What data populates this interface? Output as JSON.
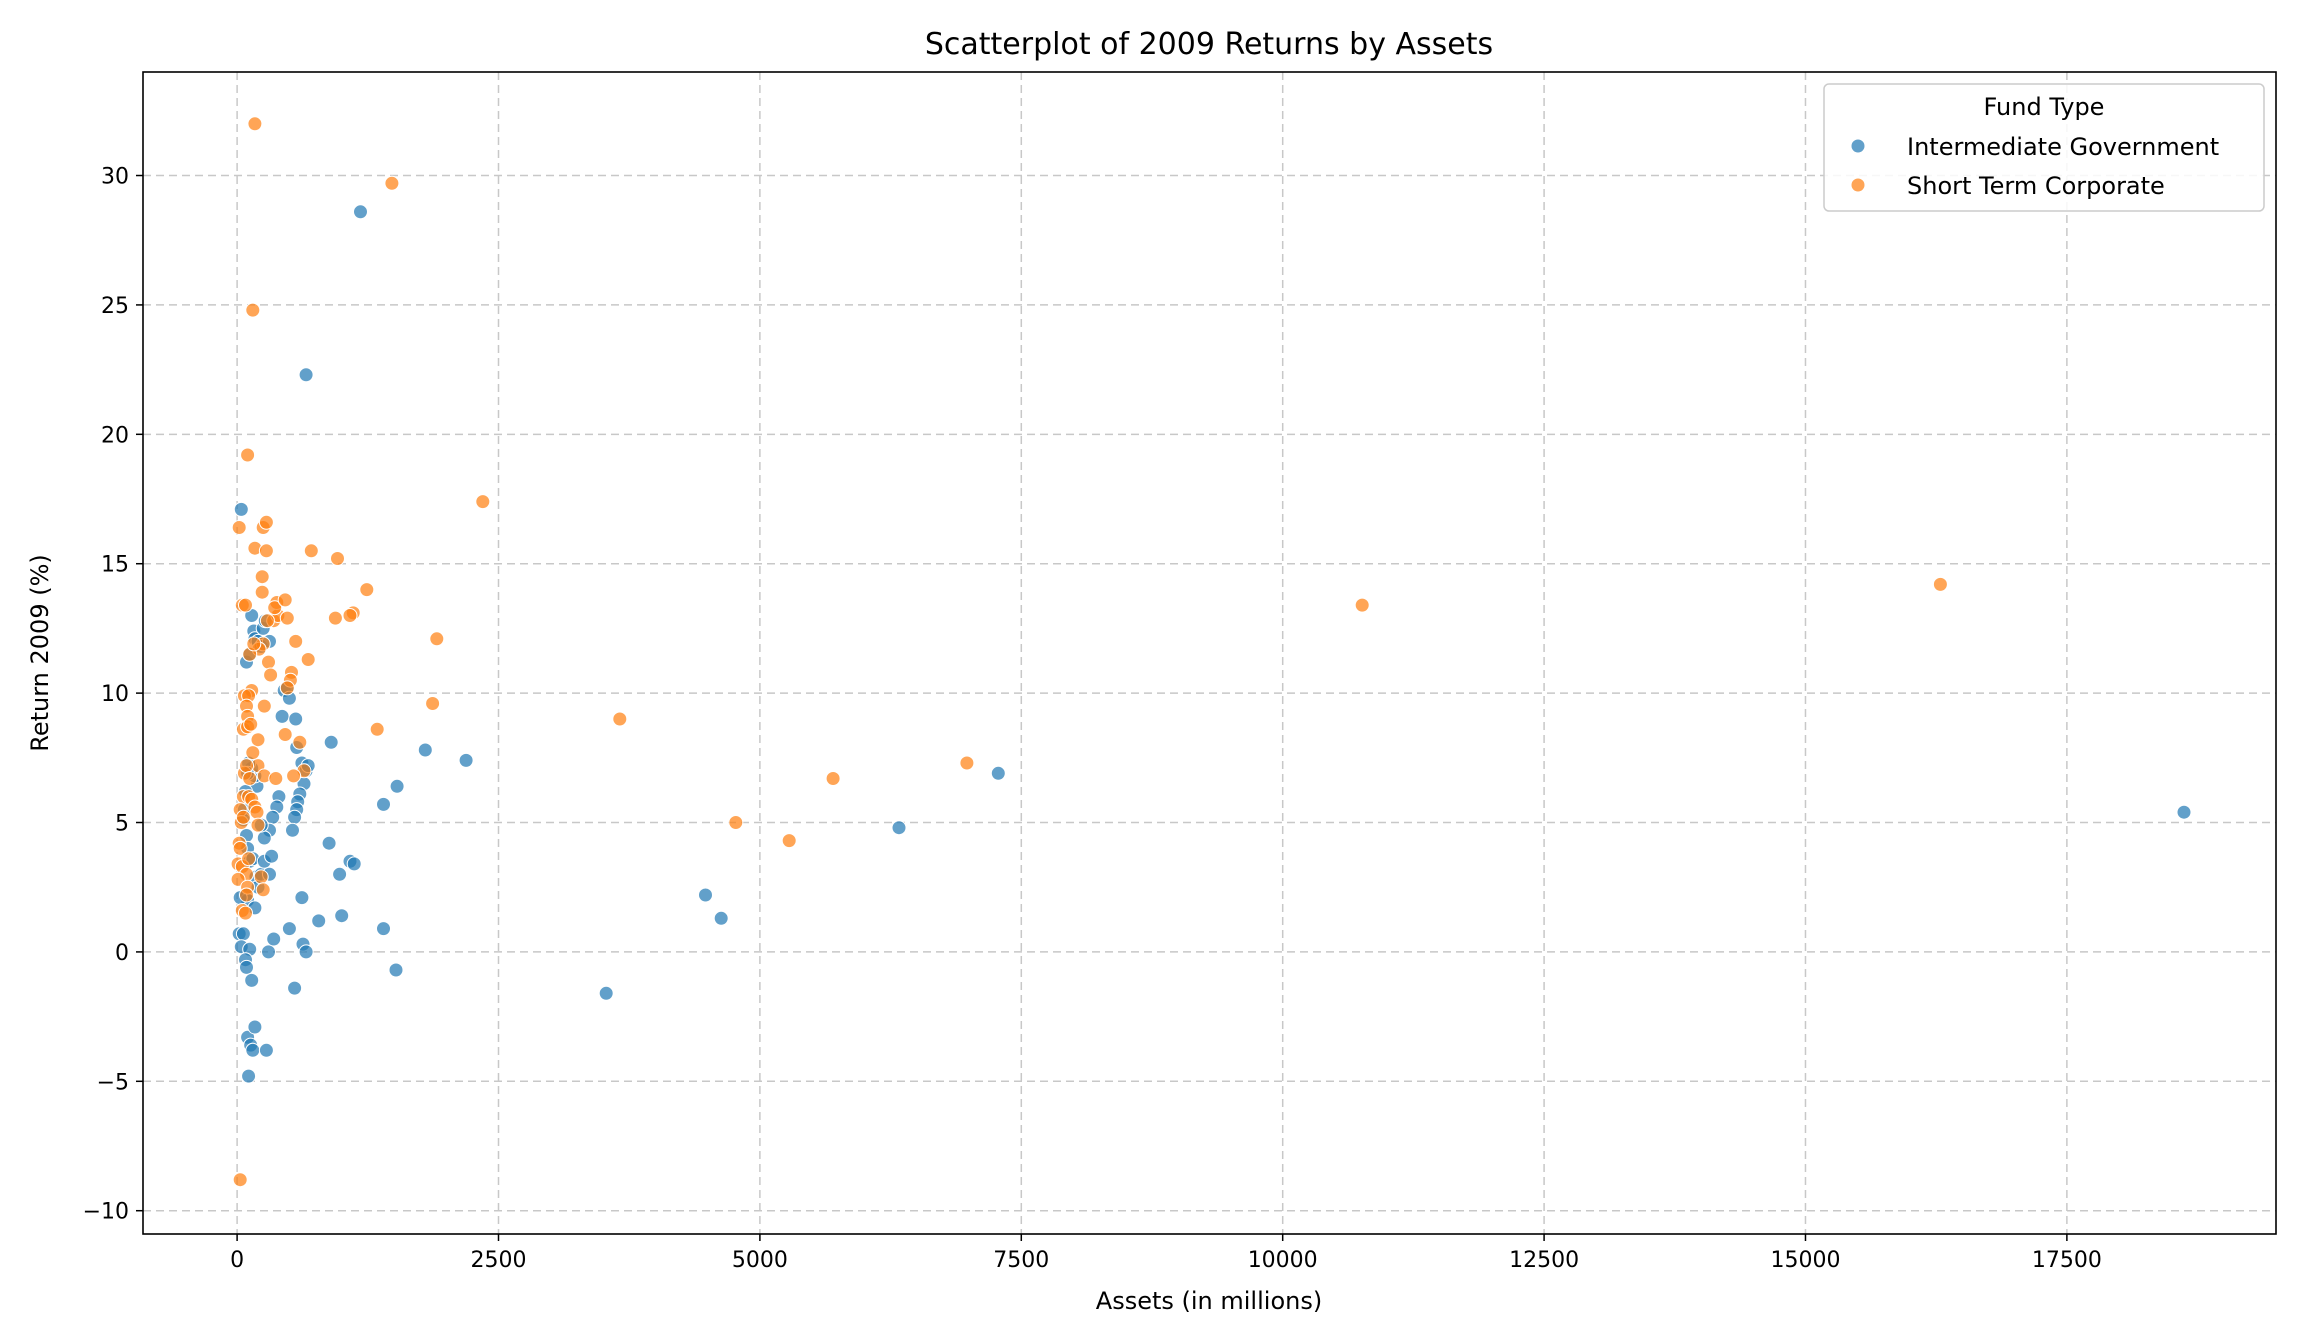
{
  "chart_data": {
    "type": "scatter",
    "title": "Scatterplot of 2009 Returns by Assets",
    "xlabel": "Assets (in millions)",
    "ylabel": "Return 2009 (%)",
    "xlim": [
      -900,
      19500
    ],
    "ylim": [
      -10.9,
      34
    ],
    "xticks": [
      0,
      2500,
      5000,
      7500,
      10000,
      12500,
      15000,
      17500
    ],
    "yticks": [
      -10,
      -5,
      0,
      5,
      10,
      15,
      20,
      25,
      30
    ],
    "grid": true,
    "legend": {
      "title": "Fund Type",
      "placement": "top-right"
    },
    "series": [
      {
        "name": "Intermediate Government",
        "color": "#1f77b4",
        "points": [
          [
            40,
            17.1
          ],
          [
            90,
            11.2
          ],
          [
            120,
            11.5
          ],
          [
            140,
            13.0
          ],
          [
            160,
            12.4
          ],
          [
            170,
            12.1
          ],
          [
            200,
            12.0
          ],
          [
            230,
            11.8
          ],
          [
            250,
            12.5
          ],
          [
            270,
            12.8
          ],
          [
            310,
            12.0
          ],
          [
            430,
            9.1
          ],
          [
            450,
            10.1
          ],
          [
            480,
            10.2
          ],
          [
            500,
            9.8
          ],
          [
            560,
            9.0
          ],
          [
            570,
            7.9
          ],
          [
            620,
            7.3
          ],
          [
            660,
            7.0
          ],
          [
            680,
            7.2
          ],
          [
            640,
            6.5
          ],
          [
            600,
            6.1
          ],
          [
            580,
            5.8
          ],
          [
            570,
            5.5
          ],
          [
            550,
            5.2
          ],
          [
            400,
            6.0
          ],
          [
            380,
            5.6
          ],
          [
            340,
            5.2
          ],
          [
            310,
            4.7
          ],
          [
            260,
            4.4
          ],
          [
            230,
            4.9
          ],
          [
            190,
            6.4
          ],
          [
            170,
            6.8
          ],
          [
            140,
            7.1
          ],
          [
            110,
            7.3
          ],
          [
            100,
            6.9
          ],
          [
            80,
            6.2
          ],
          [
            70,
            5.5
          ],
          [
            60,
            5.1
          ],
          [
            90,
            4.5
          ],
          [
            100,
            4.0
          ],
          [
            120,
            3.5
          ],
          [
            150,
            3.6
          ],
          [
            180,
            2.9
          ],
          [
            200,
            2.5
          ],
          [
            230,
            3.0
          ],
          [
            260,
            3.5
          ],
          [
            310,
            3.0
          ],
          [
            330,
            3.7
          ],
          [
            80,
            2.2
          ],
          [
            100,
            2.0
          ],
          [
            170,
            1.7
          ],
          [
            30,
            2.1
          ],
          [
            20,
            0.7
          ],
          [
            60,
            0.7
          ],
          [
            40,
            0.2
          ],
          [
            120,
            0.1
          ],
          [
            80,
            -0.3
          ],
          [
            90,
            -0.6
          ],
          [
            140,
            -1.1
          ],
          [
            100,
            -3.3
          ],
          [
            130,
            -3.6
          ],
          [
            150,
            -3.8
          ],
          [
            280,
            -3.8
          ],
          [
            110,
            -4.8
          ],
          [
            170,
            -2.9
          ],
          [
            550,
            -1.4
          ],
          [
            300,
            0.0
          ],
          [
            350,
            0.5
          ],
          [
            500,
            0.9
          ],
          [
            630,
            0.3
          ],
          [
            660,
            0.0
          ],
          [
            620,
            2.1
          ],
          [
            780,
            1.2
          ],
          [
            1000,
            1.4
          ],
          [
            980,
            3.0
          ],
          [
            1080,
            3.5
          ],
          [
            1120,
            3.4
          ],
          [
            880,
            4.2
          ],
          [
            530,
            4.7
          ],
          [
            900,
            8.1
          ],
          [
            1400,
            5.7
          ],
          [
            1530,
            6.4
          ],
          [
            1800,
            7.8
          ],
          [
            2190,
            7.4
          ],
          [
            1400,
            0.9
          ],
          [
            1520,
            -0.7
          ],
          [
            660,
            22.3
          ],
          [
            1180,
            28.6
          ],
          [
            3530,
            -1.6
          ],
          [
            4480,
            2.2
          ],
          [
            4630,
            1.3
          ],
          [
            6330,
            4.8
          ],
          [
            7280,
            6.9
          ],
          [
            18620,
            5.4
          ]
        ]
      },
      {
        "name": "Short Term Corporate",
        "color": "#ff7f0e",
        "points": [
          [
            170,
            32.0
          ],
          [
            1480,
            29.7
          ],
          [
            150,
            24.8
          ],
          [
            100,
            19.2
          ],
          [
            20,
            16.4
          ],
          [
            170,
            15.6
          ],
          [
            250,
            16.4
          ],
          [
            280,
            16.6
          ],
          [
            280,
            15.5
          ],
          [
            240,
            14.5
          ],
          [
            240,
            13.9
          ],
          [
            50,
            13.4
          ],
          [
            80,
            13.4
          ],
          [
            350,
            12.8
          ],
          [
            390,
            13.0
          ],
          [
            380,
            13.5
          ],
          [
            360,
            13.3
          ],
          [
            460,
            13.6
          ],
          [
            480,
            12.9
          ],
          [
            560,
            12.0
          ],
          [
            250,
            11.9
          ],
          [
            210,
            11.7
          ],
          [
            290,
            12.8
          ],
          [
            120,
            11.5
          ],
          [
            160,
            11.9
          ],
          [
            300,
            11.2
          ],
          [
            680,
            11.3
          ],
          [
            320,
            10.7
          ],
          [
            520,
            10.8
          ],
          [
            510,
            10.5
          ],
          [
            480,
            10.2
          ],
          [
            140,
            10.1
          ],
          [
            70,
            9.9
          ],
          [
            110,
            9.9
          ],
          [
            90,
            9.5
          ],
          [
            260,
            9.5
          ],
          [
            100,
            9.1
          ],
          [
            60,
            8.6
          ],
          [
            100,
            8.7
          ],
          [
            130,
            8.8
          ],
          [
            200,
            8.2
          ],
          [
            460,
            8.4
          ],
          [
            600,
            8.1
          ],
          [
            640,
            7.0
          ],
          [
            150,
            7.7
          ],
          [
            200,
            7.2
          ],
          [
            260,
            6.8
          ],
          [
            370,
            6.7
          ],
          [
            540,
            6.8
          ],
          [
            70,
            6.9
          ],
          [
            90,
            7.2
          ],
          [
            120,
            6.7
          ],
          [
            60,
            6.0
          ],
          [
            110,
            6.0
          ],
          [
            140,
            5.9
          ],
          [
            170,
            5.6
          ],
          [
            190,
            5.4
          ],
          [
            30,
            5.5
          ],
          [
            40,
            5.0
          ],
          [
            60,
            5.2
          ],
          [
            200,
            4.9
          ],
          [
            20,
            4.2
          ],
          [
            30,
            4.0
          ],
          [
            10,
            3.4
          ],
          [
            50,
            3.3
          ],
          [
            90,
            3.0
          ],
          [
            10,
            2.8
          ],
          [
            50,
            1.6
          ],
          [
            80,
            1.5
          ],
          [
            100,
            2.5
          ],
          [
            90,
            2.2
          ],
          [
            110,
            3.6
          ],
          [
            230,
            2.9
          ],
          [
            250,
            2.4
          ],
          [
            30,
            -8.8
          ],
          [
            710,
            15.5
          ],
          [
            960,
            15.2
          ],
          [
            1240,
            14.0
          ],
          [
            1110,
            13.1
          ],
          [
            1080,
            13.0
          ],
          [
            940,
            12.9
          ],
          [
            1910,
            12.1
          ],
          [
            2350,
            17.4
          ],
          [
            1870,
            9.6
          ],
          [
            1340,
            8.6
          ],
          [
            3660,
            9.0
          ],
          [
            4770,
            5.0
          ],
          [
            5280,
            4.3
          ],
          [
            5700,
            6.7
          ],
          [
            6980,
            7.3
          ],
          [
            10760,
            13.4
          ],
          [
            16290,
            14.2
          ]
        ]
      }
    ]
  }
}
